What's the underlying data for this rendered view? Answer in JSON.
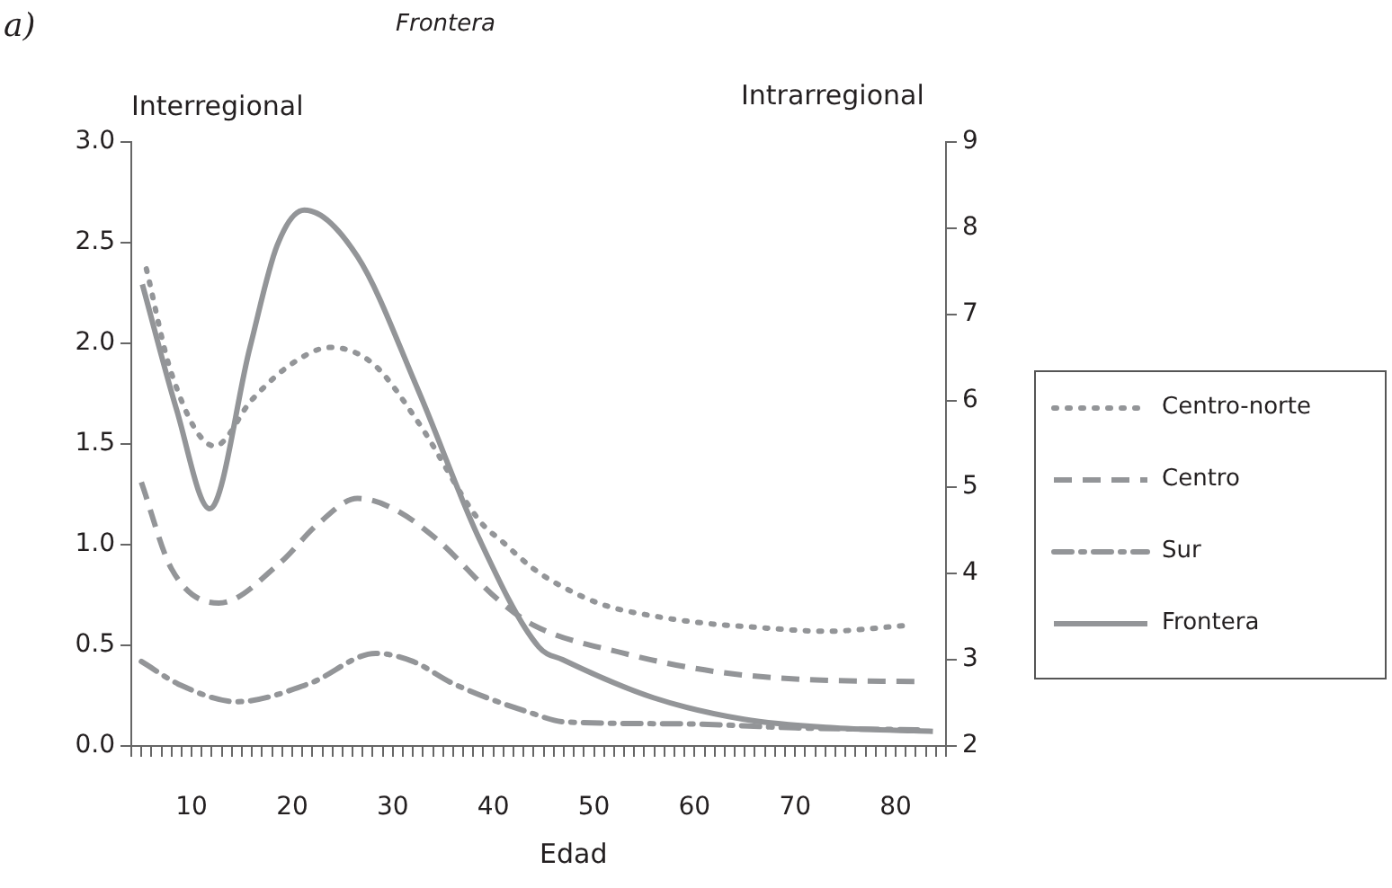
{
  "chart_data": {
    "type": "line",
    "title": "Frontera",
    "xlabel": "Edad",
    "ylabel": "Interregional",
    "y2label": "Intrarregional",
    "annotations": [
      "a)"
    ],
    "legend": "right",
    "grid": false,
    "marker": "none",
    "xlim": [
      4,
      85
    ],
    "xticks": [
      {
        "value": 4,
        "label": null
      },
      {
        "value": 5,
        "label": null
      },
      {
        "value": 6,
        "label": null
      },
      {
        "value": 7,
        "label": null
      },
      {
        "value": 8,
        "label": null
      },
      {
        "value": 9,
        "label": null
      },
      10,
      {
        "value": 11,
        "label": null
      },
      {
        "value": 12,
        "label": null
      },
      {
        "value": 13,
        "label": null
      },
      {
        "value": 14,
        "label": null
      },
      {
        "value": 15,
        "label": null
      },
      {
        "value": 16,
        "label": null
      },
      {
        "value": 17,
        "label": null
      },
      {
        "value": 18,
        "label": null
      },
      {
        "value": 19,
        "label": null
      },
      20,
      {
        "value": 21,
        "label": null
      },
      {
        "value": 22,
        "label": null
      },
      {
        "value": 23,
        "label": null
      },
      {
        "value": 24,
        "label": null
      },
      {
        "value": 25,
        "label": null
      },
      {
        "value": 26,
        "label": null
      },
      {
        "value": 27,
        "label": null
      },
      {
        "value": 28,
        "label": null
      },
      {
        "value": 29,
        "label": null
      },
      30,
      {
        "value": 31,
        "label": null
      },
      {
        "value": 32,
        "label": null
      },
      {
        "value": 33,
        "label": null
      },
      {
        "value": 34,
        "label": null
      },
      {
        "value": 35,
        "label": null
      },
      {
        "value": 36,
        "label": null
      },
      {
        "value": 37,
        "label": null
      },
      {
        "value": 38,
        "label": null
      },
      {
        "value": 39,
        "label": null
      },
      40,
      {
        "value": 41,
        "label": null
      },
      {
        "value": 42,
        "label": null
      },
      {
        "value": 43,
        "label": null
      },
      {
        "value": 44,
        "label": null
      },
      {
        "value": 45,
        "label": null
      },
      {
        "value": 46,
        "label": null
      },
      {
        "value": 47,
        "label": null
      },
      {
        "value": 48,
        "label": null
      },
      {
        "value": 49,
        "label": null
      },
      50,
      {
        "value": 51,
        "label": null
      },
      {
        "value": 52,
        "label": null
      },
      {
        "value": 53,
        "label": null
      },
      {
        "value": 54,
        "label": null
      },
      {
        "value": 55,
        "label": null
      },
      {
        "value": 56,
        "label": null
      },
      {
        "value": 57,
        "label": null
      },
      {
        "value": 58,
        "label": null
      },
      {
        "value": 59,
        "label": null
      },
      60,
      {
        "value": 61,
        "label": null
      },
      {
        "value": 62,
        "label": null
      },
      {
        "value": 63,
        "label": null
      },
      {
        "value": 64,
        "label": null
      },
      {
        "value": 65,
        "label": null
      },
      {
        "value": 66,
        "label": null
      },
      {
        "value": 67,
        "label": null
      },
      {
        "value": 68,
        "label": null
      },
      {
        "value": 69,
        "label": null
      },
      70,
      {
        "value": 71,
        "label": null
      },
      {
        "value": 72,
        "label": null
      },
      {
        "value": 73,
        "label": null
      },
      {
        "value": 74,
        "label": null
      },
      {
        "value": 75,
        "label": null
      },
      {
        "value": 76,
        "label": null
      },
      {
        "value": 77,
        "label": null
      },
      {
        "value": 78,
        "label": null
      },
      {
        "value": 79,
        "label": null
      },
      80,
      {
        "value": 81,
        "label": null
      },
      {
        "value": 82,
        "label": null
      },
      {
        "value": 83,
        "label": null
      },
      {
        "value": 84,
        "label": null
      },
      {
        "value": 85,
        "label": null
      }
    ],
    "ylim": [
      0,
      3
    ],
    "yticks": [
      {
        "value": 0,
        "label": "0.0"
      },
      0.5,
      {
        "value": 1,
        "label": "1.0"
      },
      1.5,
      {
        "value": 2,
        "label": "2.0"
      },
      2.5,
      {
        "value": 3,
        "label": "3.0"
      }
    ],
    "y2lim": [
      2,
      9
    ],
    "y2ticks": [
      2,
      3,
      4,
      5,
      6,
      7,
      8,
      9
    ],
    "series": [
      {
        "name": "Centro-norte",
        "color": "#939598",
        "line_style": "dotted",
        "x": [
          5.5,
          8,
          12.3,
          16,
          20,
          23.8,
          28,
          32.5,
          38.6,
          41,
          44,
          46.9,
          51,
          56.6,
          61,
          66,
          73,
          81.4
        ],
        "values": [
          2.37,
          1.85,
          1.49,
          1.72,
          1.9,
          1.98,
          1.9,
          1.61,
          1.12,
          1.01,
          0.88,
          0.79,
          0.7,
          0.64,
          0.61,
          0.59,
          0.57,
          0.6
        ]
      },
      {
        "name": "Centro",
        "color": "#939598",
        "line_style": "dashed",
        "x": [
          5,
          8,
          12.7,
          18.8,
          22.5,
          26.5,
          30,
          34.3,
          40.4,
          44,
          53,
          62,
          71,
          82.3
        ],
        "values": [
          1.31,
          0.88,
          0.71,
          0.91,
          1.1,
          1.23,
          1.18,
          1.03,
          0.73,
          0.6,
          0.46,
          0.37,
          0.33,
          0.32
        ]
      },
      {
        "name": "Sur",
        "color": "#939598",
        "line_style": "dashdot",
        "x": [
          5,
          9,
          14.5,
          21.7,
          28.3,
          32,
          36,
          44,
          47,
          59,
          70,
          82.8
        ],
        "values": [
          0.42,
          0.3,
          0.22,
          0.31,
          0.46,
          0.42,
          0.31,
          0.16,
          0.12,
          0.11,
          0.09,
          0.08
        ]
      },
      {
        "name": "Frontera",
        "color": "#939598",
        "line_style": "solid",
        "axis": "y2",
        "x": [
          5.1,
          8.5,
          11.8,
          15.8,
          18.5,
          21.2,
          26.5,
          32.5,
          38.6,
          44.5,
          46.9,
          55.9,
          64.9,
          73.9,
          83.7
        ],
        "values": [
          7.35,
          5.9,
          4.75,
          6.62,
          7.8,
          8.21,
          7.67,
          6.13,
          4.4,
          3.15,
          3.0,
          2.56,
          2.31,
          2.21,
          2.17
        ]
      }
    ]
  }
}
